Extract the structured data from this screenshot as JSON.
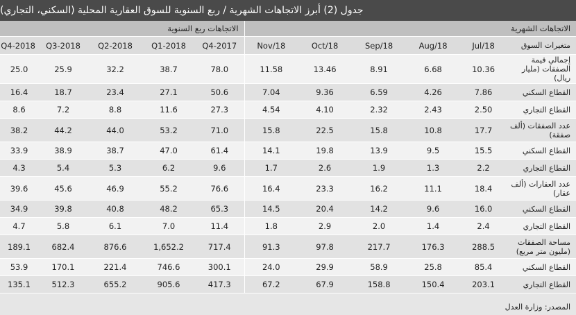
{
  "title": "جدول (2) أبرز الاتجاهات الشهرية / ربع السنوية للسوق العقارية المحلية (السكني، التجاري)",
  "groups": {
    "monthly": "الاتجاهات الشهرية",
    "quarterly": "الاتجاهات ربع السنوية"
  },
  "header": {
    "row_label": "متغيرات السوق",
    "columns": [
      "Jul/18",
      "Aug/18",
      "Sep/18",
      "Oct/18",
      "Nov/18",
      "2017-Q4",
      "2018-Q1",
      "2018-Q2",
      "2018-Q3",
      "2018-Q4"
    ]
  },
  "rows": [
    {
      "label": "إجمالي قيمة الصفقات (مليار ريال)",
      "values": [
        "10.36",
        "6.68",
        "8.91",
        "13.46",
        "11.58",
        "78.0",
        "38.7",
        "32.2",
        "25.9",
        "25.0"
      ]
    },
    {
      "label": "القطاع السكني",
      "values": [
        "7.86",
        "4.26",
        "6.59",
        "9.36",
        "7.04",
        "50.6",
        "27.1",
        "23.4",
        "18.7",
        "16.4"
      ]
    },
    {
      "label": "القطاع التجاري",
      "values": [
        "2.50",
        "2.43",
        "2.32",
        "4.10",
        "4.54",
        "27.3",
        "11.6",
        "8.8",
        "7.2",
        "8.6"
      ]
    },
    {
      "label": "عدد الصفقات (ألف صفقة)",
      "values": [
        "17.7",
        "10.8",
        "15.8",
        "22.5",
        "15.8",
        "71.0",
        "53.2",
        "44.0",
        "44.2",
        "38.2"
      ]
    },
    {
      "label": "القطاع السكني",
      "values": [
        "15.5",
        "9.5",
        "13.9",
        "19.8",
        "14.1",
        "61.4",
        "47.0",
        "38.7",
        "38.9",
        "33.9"
      ]
    },
    {
      "label": "القطاع التجاري",
      "values": [
        "2.2",
        "1.3",
        "1.9",
        "2.6",
        "1.7",
        "9.6",
        "6.2",
        "5.3",
        "5.4",
        "4.3"
      ]
    },
    {
      "label": "عدد العقارات (ألف عقار)",
      "values": [
        "18.4",
        "11.1",
        "16.2",
        "23.3",
        "16.4",
        "76.6",
        "55.2",
        "46.9",
        "45.6",
        "39.6"
      ]
    },
    {
      "label": "القطاع السكني",
      "values": [
        "16.0",
        "9.6",
        "14.2",
        "20.4",
        "14.5",
        "65.3",
        "48.2",
        "40.8",
        "39.8",
        "34.9"
      ]
    },
    {
      "label": "القطاع التجاري",
      "values": [
        "2.4",
        "1.4",
        "2.0",
        "2.9",
        "1.8",
        "11.4",
        "7.0",
        "6.1",
        "5.8",
        "4.7"
      ]
    },
    {
      "label": "مساحة الصفقات (مليون متر مربع)",
      "values": [
        "288.5",
        "176.3",
        "217.7",
        "97.8",
        "91.3",
        "717.4",
        "1,652.2",
        "876.6",
        "682.4",
        "189.1"
      ]
    },
    {
      "label": "القطاع السكني",
      "values": [
        "85.4",
        "25.8",
        "58.9",
        "29.9",
        "24.0",
        "300.1",
        "746.6",
        "221.4",
        "170.1",
        "53.9"
      ]
    },
    {
      "label": "القطاع التجاري",
      "values": [
        "203.1",
        "150.4",
        "158.8",
        "67.9",
        "67.2",
        "417.3",
        "905.6",
        "655.2",
        "512.3",
        "135.1"
      ]
    }
  ],
  "source": "المصدر: وزارة العدل"
}
